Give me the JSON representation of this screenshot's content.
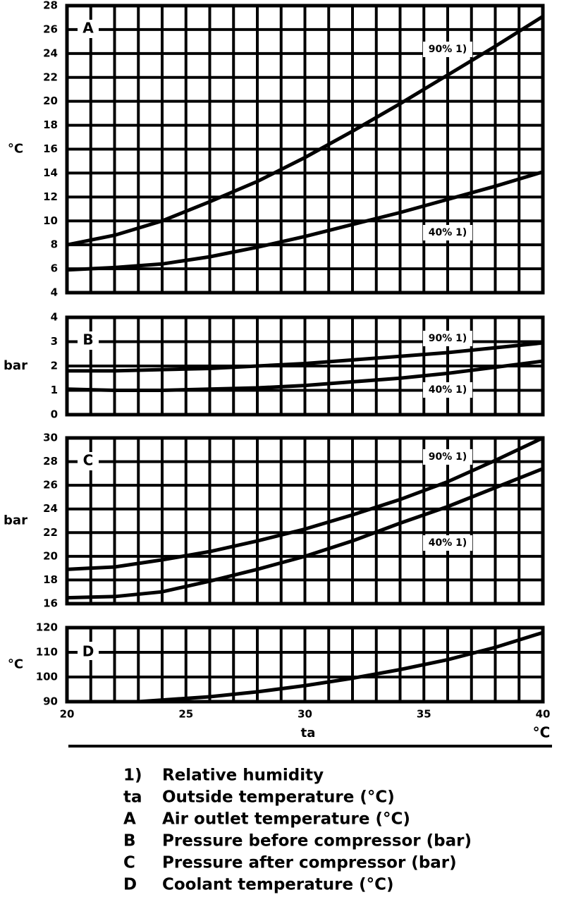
{
  "chart_data": [
    {
      "type": "line",
      "panel": "A",
      "y_label": "°C",
      "xlim": [
        20,
        40
      ],
      "xgrid": [
        20,
        21,
        22,
        23,
        24,
        25,
        26,
        27,
        28,
        29,
        30,
        31,
        32,
        33,
        34,
        35,
        36,
        37,
        38,
        39,
        40
      ],
      "ylim": [
        4,
        28
      ],
      "yticks": [
        4,
        6,
        8,
        10,
        12,
        14,
        16,
        18,
        20,
        22,
        24,
        26,
        28
      ],
      "grid": true,
      "x": [
        20,
        22,
        24,
        26,
        28,
        30,
        32,
        34,
        36,
        38,
        40
      ],
      "series": [
        {
          "name": "90% 1)",
          "color": "#000000",
          "values": [
            8,
            8.8,
            10,
            11.6,
            13.3,
            15.3,
            17.5,
            19.8,
            22.2,
            24.6,
            27.1
          ]
        },
        {
          "name": "40% 1)",
          "color": "#000000",
          "values": [
            5.9,
            6.1,
            6.4,
            7,
            7.8,
            8.7,
            9.7,
            10.7,
            11.8,
            12.9,
            14.1
          ]
        }
      ]
    },
    {
      "type": "line",
      "panel": "B",
      "y_label": "bar",
      "xlim": [
        20,
        40
      ],
      "xgrid": [
        20,
        21,
        22,
        23,
        24,
        25,
        26,
        27,
        28,
        29,
        30,
        31,
        32,
        33,
        34,
        35,
        36,
        37,
        38,
        39,
        40
      ],
      "ylim": [
        0,
        4
      ],
      "yticks": [
        0,
        1,
        2,
        3,
        4
      ],
      "grid": true,
      "x": [
        20,
        22,
        24,
        26,
        28,
        30,
        32,
        34,
        36,
        38,
        40
      ],
      "series": [
        {
          "name": "90% 1)",
          "color": "#000000",
          "values": [
            1.8,
            1.8,
            1.85,
            1.9,
            2,
            2.1,
            2.25,
            2.4,
            2.55,
            2.75,
            2.95
          ]
        },
        {
          "name": "40% 1)",
          "color": "#000000",
          "values": [
            1.05,
            1,
            1,
            1.05,
            1.1,
            1.2,
            1.35,
            1.5,
            1.7,
            1.95,
            2.2
          ]
        }
      ]
    },
    {
      "type": "line",
      "panel": "C",
      "y_label": "bar",
      "xlim": [
        20,
        40
      ],
      "xgrid": [
        20,
        21,
        22,
        23,
        24,
        25,
        26,
        27,
        28,
        29,
        30,
        31,
        32,
        33,
        34,
        35,
        36,
        37,
        38,
        39,
        40
      ],
      "ylim": [
        16,
        30
      ],
      "yticks": [
        16,
        18,
        20,
        22,
        24,
        26,
        28,
        30
      ],
      "grid": true,
      "x": [
        20,
        22,
        24,
        26,
        28,
        30,
        32,
        34,
        36,
        38,
        40
      ],
      "series": [
        {
          "name": "90% 1)",
          "color": "#000000",
          "values": [
            18.9,
            19.1,
            19.7,
            20.4,
            21.3,
            22.3,
            23.5,
            24.8,
            26.3,
            28.1,
            30
          ]
        },
        {
          "name": "40% 1)",
          "color": "#000000",
          "values": [
            16.5,
            16.6,
            17,
            17.9,
            18.9,
            20,
            21.3,
            22.8,
            24.2,
            25.8,
            27.4
          ]
        }
      ]
    },
    {
      "type": "line",
      "panel": "D",
      "y_label": "°C",
      "xlim": [
        20,
        40
      ],
      "xticks": [
        20,
        25,
        30,
        35,
        40
      ],
      "x_label": "ta",
      "x_unit": "°C",
      "xgrid": [
        20,
        21,
        22,
        23,
        24,
        25,
        26,
        27,
        28,
        29,
        30,
        31,
        32,
        33,
        34,
        35,
        36,
        37,
        38,
        39,
        40
      ],
      "ylim": [
        90,
        120
      ],
      "yticks": [
        90,
        100,
        110,
        120
      ],
      "grid": true,
      "x": [
        23,
        26,
        28,
        30,
        32,
        34,
        36,
        38,
        40
      ],
      "series": [
        {
          "color": "#000000",
          "values": [
            90,
            92,
            94,
            96.5,
            99.5,
            103,
            107,
            112,
            118
          ]
        }
      ]
    }
  ],
  "notes": [
    [
      "1)",
      "Relative humidity"
    ],
    [
      "ta",
      "Outside temperature (°C)"
    ],
    [
      "A",
      "Air outlet temperature (°C)"
    ],
    [
      "B",
      "Pressure before compressor (bar)"
    ],
    [
      "C",
      "Pressure after compressor (bar)"
    ],
    [
      "D",
      "Coolant temperature (°C)"
    ]
  ]
}
